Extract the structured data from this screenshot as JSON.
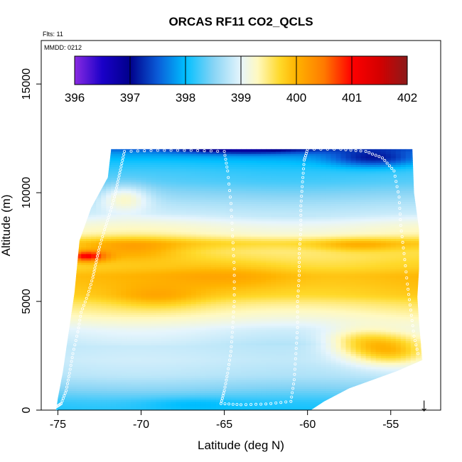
{
  "chart_data": {
    "type": "heatmap",
    "title": "ORCAS RF11 CO2_QCLS",
    "subtitle_flights": "Flts: 11",
    "annotation_date": "MMDD: 0212",
    "xlabel": "Latitude (deg N)",
    "ylabel": "Altitude (m)",
    "xlim": [
      -76,
      -52
    ],
    "ylim": [
      0,
      17000
    ],
    "x_ticks": [
      -75,
      -70,
      -65,
      -60,
      -55
    ],
    "x_tick_labels": [
      "-75",
      "-70",
      "-65",
      "-60",
      "-55"
    ],
    "y_ticks": [
      0,
      5000,
      10000,
      15000
    ],
    "y_tick_labels": [
      "0",
      "5000",
      "10000",
      "15000"
    ],
    "colorbar": {
      "min": 396,
      "max": 402,
      "ticks": [
        396,
        397,
        398,
        399,
        400,
        401,
        402
      ],
      "tick_labels": [
        "396",
        "397",
        "398",
        "399",
        "400",
        "401",
        "402"
      ],
      "stops": [
        {
          "v": 396.0,
          "color": "#8a2be2"
        },
        {
          "v": 396.5,
          "color": "#1a00c8"
        },
        {
          "v": 397.0,
          "color": "#00008b"
        },
        {
          "v": 397.5,
          "color": "#0a5cd8"
        },
        {
          "v": 398.0,
          "color": "#00bfff"
        },
        {
          "v": 398.5,
          "color": "#86d4f5"
        },
        {
          "v": 399.0,
          "color": "#e6f5fc"
        },
        {
          "v": 399.3,
          "color": "#fff9c0"
        },
        {
          "v": 399.7,
          "color": "#ffd92a"
        },
        {
          "v": 400.0,
          "color": "#ffb300"
        },
        {
          "v": 400.5,
          "color": "#ff7a00"
        },
        {
          "v": 401.0,
          "color": "#ff0000"
        },
        {
          "v": 401.5,
          "color": "#d40000"
        },
        {
          "v": 402.0,
          "color": "#8b1a1a"
        }
      ]
    },
    "domain_boundary": {
      "left": [
        [
          -75.1,
          0
        ],
        [
          -75.0,
          550
        ],
        [
          -74.7,
          1750
        ],
        [
          -74.0,
          5400
        ],
        [
          -73.7,
          7800
        ],
        [
          -73.0,
          9300
        ],
        [
          -72.0,
          10700
        ],
        [
          -71.8,
          12000
        ]
      ],
      "right": [
        [
          -53.7,
          12000
        ],
        [
          -53.6,
          10000
        ],
        [
          -53.3,
          8300
        ],
        [
          -53.3,
          6500
        ],
        [
          -53.4,
          5200
        ],
        [
          -53.3,
          4000
        ],
        [
          -53.1,
          2300
        ],
        [
          -54.6,
          1800
        ],
        [
          -57.5,
          1000
        ],
        [
          -59.0,
          400
        ],
        [
          -59.8,
          0
        ]
      ]
    },
    "background_profile": [
      {
        "z": 0,
        "v": 398.1
      },
      {
        "z": 400,
        "v": 398.2
      },
      {
        "z": 1000,
        "v": 398.5
      },
      {
        "z": 1600,
        "v": 398.75
      },
      {
        "z": 2300,
        "v": 398.85
      },
      {
        "z": 3000,
        "v": 398.8
      },
      {
        "z": 3700,
        "v": 398.95
      },
      {
        "z": 4300,
        "v": 399.25
      },
      {
        "z": 4900,
        "v": 399.5
      },
      {
        "z": 5300,
        "v": 399.75
      },
      {
        "z": 5800,
        "v": 399.85
      },
      {
        "z": 6200,
        "v": 399.9
      },
      {
        "z": 6600,
        "v": 399.7
      },
      {
        "z": 7000,
        "v": 399.6
      },
      {
        "z": 7300,
        "v": 399.55
      },
      {
        "z": 7700,
        "v": 399.75
      },
      {
        "z": 8100,
        "v": 399.3
      },
      {
        "z": 8600,
        "v": 399.1
      },
      {
        "z": 9000,
        "v": 398.85
      },
      {
        "z": 9500,
        "v": 398.7
      },
      {
        "z": 10000,
        "v": 398.5
      },
      {
        "z": 10500,
        "v": 398.3
      },
      {
        "z": 11000,
        "v": 398.2
      },
      {
        "z": 11400,
        "v": 398.05
      },
      {
        "z": 11800,
        "v": 397.8
      },
      {
        "z": 12200,
        "v": 397.3
      }
    ],
    "anomalies": [
      {
        "lat": -73.3,
        "alt": 7100,
        "dlat": 1.2,
        "dalt": 250,
        "dv": 1.3
      },
      {
        "lat": -70.5,
        "alt": 7400,
        "dlat": 3.0,
        "dalt": 500,
        "dv": 0.45
      },
      {
        "lat": -64.5,
        "alt": 6200,
        "dlat": 4.0,
        "dalt": 700,
        "dv": 0.25
      },
      {
        "lat": -57.0,
        "alt": 7600,
        "dlat": 2.5,
        "dalt": 300,
        "dv": 0.35
      },
      {
        "lat": -55.0,
        "alt": 2800,
        "dlat": 2.5,
        "dalt": 700,
        "dv": 1.05
      },
      {
        "lat": -57.0,
        "alt": 3200,
        "dlat": 2.0,
        "dalt": 600,
        "dv": 0.5
      },
      {
        "lat": -69.0,
        "alt": 5200,
        "dlat": 2.5,
        "dalt": 500,
        "dv": 0.3
      },
      {
        "lat": -64.0,
        "alt": 12000,
        "dlat": 4.0,
        "dalt": 200,
        "dv": -0.8
      },
      {
        "lat": -56.0,
        "alt": 11600,
        "dlat": 2.5,
        "dalt": 400,
        "dv": -0.8
      },
      {
        "lat": -67.0,
        "alt": 300,
        "dlat": 3.0,
        "dalt": 300,
        "dv": -0.2
      },
      {
        "lat": -71.0,
        "alt": 9800,
        "dlat": 1.5,
        "dalt": 600,
        "dv": 0.6
      }
    ],
    "flight_track": [
      [
        -75.1,
        150
      ],
      [
        -74.8,
        300
      ],
      [
        -74.5,
        900
      ],
      [
        -74.3,
        1700
      ],
      [
        -74.1,
        2600
      ],
      [
        -73.8,
        3600
      ],
      [
        -73.6,
        4500
      ],
      [
        -73.2,
        5300
      ],
      [
        -72.9,
        6100
      ],
      [
        -72.7,
        6800
      ],
      [
        -72.5,
        7500
      ],
      [
        -72.2,
        8300
      ],
      [
        -71.9,
        9000
      ],
      [
        -71.6,
        9800
      ],
      [
        -71.4,
        10500
      ],
      [
        -71.2,
        11200
      ],
      [
        -71.0,
        11900
      ],
      [
        -69.0,
        11950
      ],
      [
        -67.0,
        11950
      ],
      [
        -65.0,
        11900
      ],
      [
        -64.8,
        11000
      ],
      [
        -64.6,
        9500
      ],
      [
        -64.5,
        8000
      ],
      [
        -64.4,
        6500
      ],
      [
        -64.4,
        5000
      ],
      [
        -64.5,
        3800
      ],
      [
        -64.6,
        2700
      ],
      [
        -64.8,
        1700
      ],
      [
        -65.0,
        900
      ],
      [
        -65.2,
        300
      ],
      [
        -64.0,
        250
      ],
      [
        -62.5,
        280
      ],
      [
        -61.0,
        400
      ],
      [
        -60.8,
        1400
      ],
      [
        -60.7,
        2600
      ],
      [
        -60.6,
        3800
      ],
      [
        -60.6,
        5000
      ],
      [
        -60.5,
        6200
      ],
      [
        -60.5,
        7200
      ],
      [
        -60.4,
        8300
      ],
      [
        -60.4,
        9400
      ],
      [
        -60.3,
        10500
      ],
      [
        -60.2,
        11500
      ],
      [
        -60.0,
        12000
      ],
      [
        -58.0,
        12000
      ],
      [
        -56.5,
        11900
      ],
      [
        -55.5,
        11600
      ],
      [
        -54.8,
        11000
      ],
      [
        -54.5,
        9800
      ],
      [
        -54.4,
        8500
      ],
      [
        -54.2,
        7200
      ],
      [
        -54.0,
        5800
      ],
      [
        -53.8,
        4600
      ],
      [
        -53.6,
        3400
      ],
      [
        -53.3,
        2400
      ]
    ],
    "arrow_marker": {
      "lat": -53.0,
      "label": "↓"
    }
  }
}
